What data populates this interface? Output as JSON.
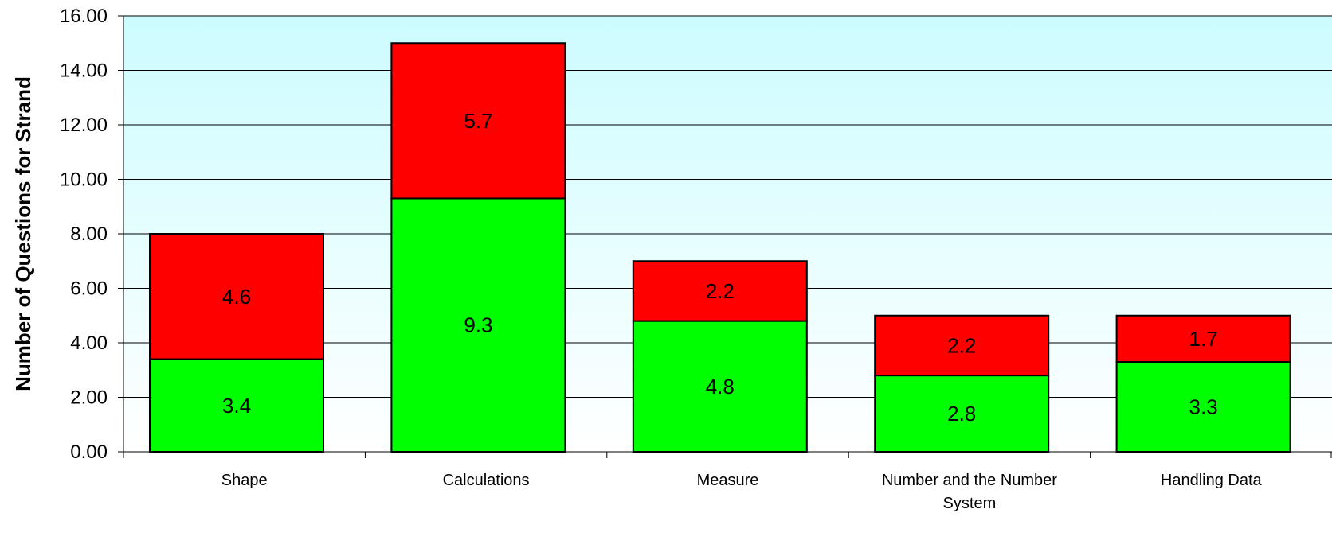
{
  "chart_data": {
    "type": "bar",
    "stacked": true,
    "title": "",
    "xlabel": "",
    "ylabel": "Number of Questions for Strand",
    "ylim": [
      0,
      16
    ],
    "yticks": [
      "0.00",
      "2.00",
      "4.00",
      "6.00",
      "8.00",
      "10.00",
      "12.00",
      "14.00",
      "16.00"
    ],
    "categories": [
      [
        "Shape"
      ],
      [
        "Calculations"
      ],
      [
        "Measure"
      ],
      [
        "Number and the Number",
        "System"
      ],
      [
        "Handling Data"
      ]
    ],
    "series": [
      {
        "color": "#00ff00",
        "values": [
          3.4,
          9.3,
          4.8,
          2.8,
          3.3
        ],
        "labels": [
          "3.4",
          "9.3",
          "4.8",
          "2.8",
          "3.3"
        ]
      },
      {
        "color": "#ff0000",
        "values": [
          4.6,
          5.7,
          2.2,
          2.2,
          1.7
        ],
        "labels": [
          "4.6",
          "5.7",
          "2.2",
          "2.2",
          "1.7"
        ]
      }
    ],
    "grid": true,
    "plot_background": [
      "#ccfcff",
      "#ffffff"
    ]
  }
}
